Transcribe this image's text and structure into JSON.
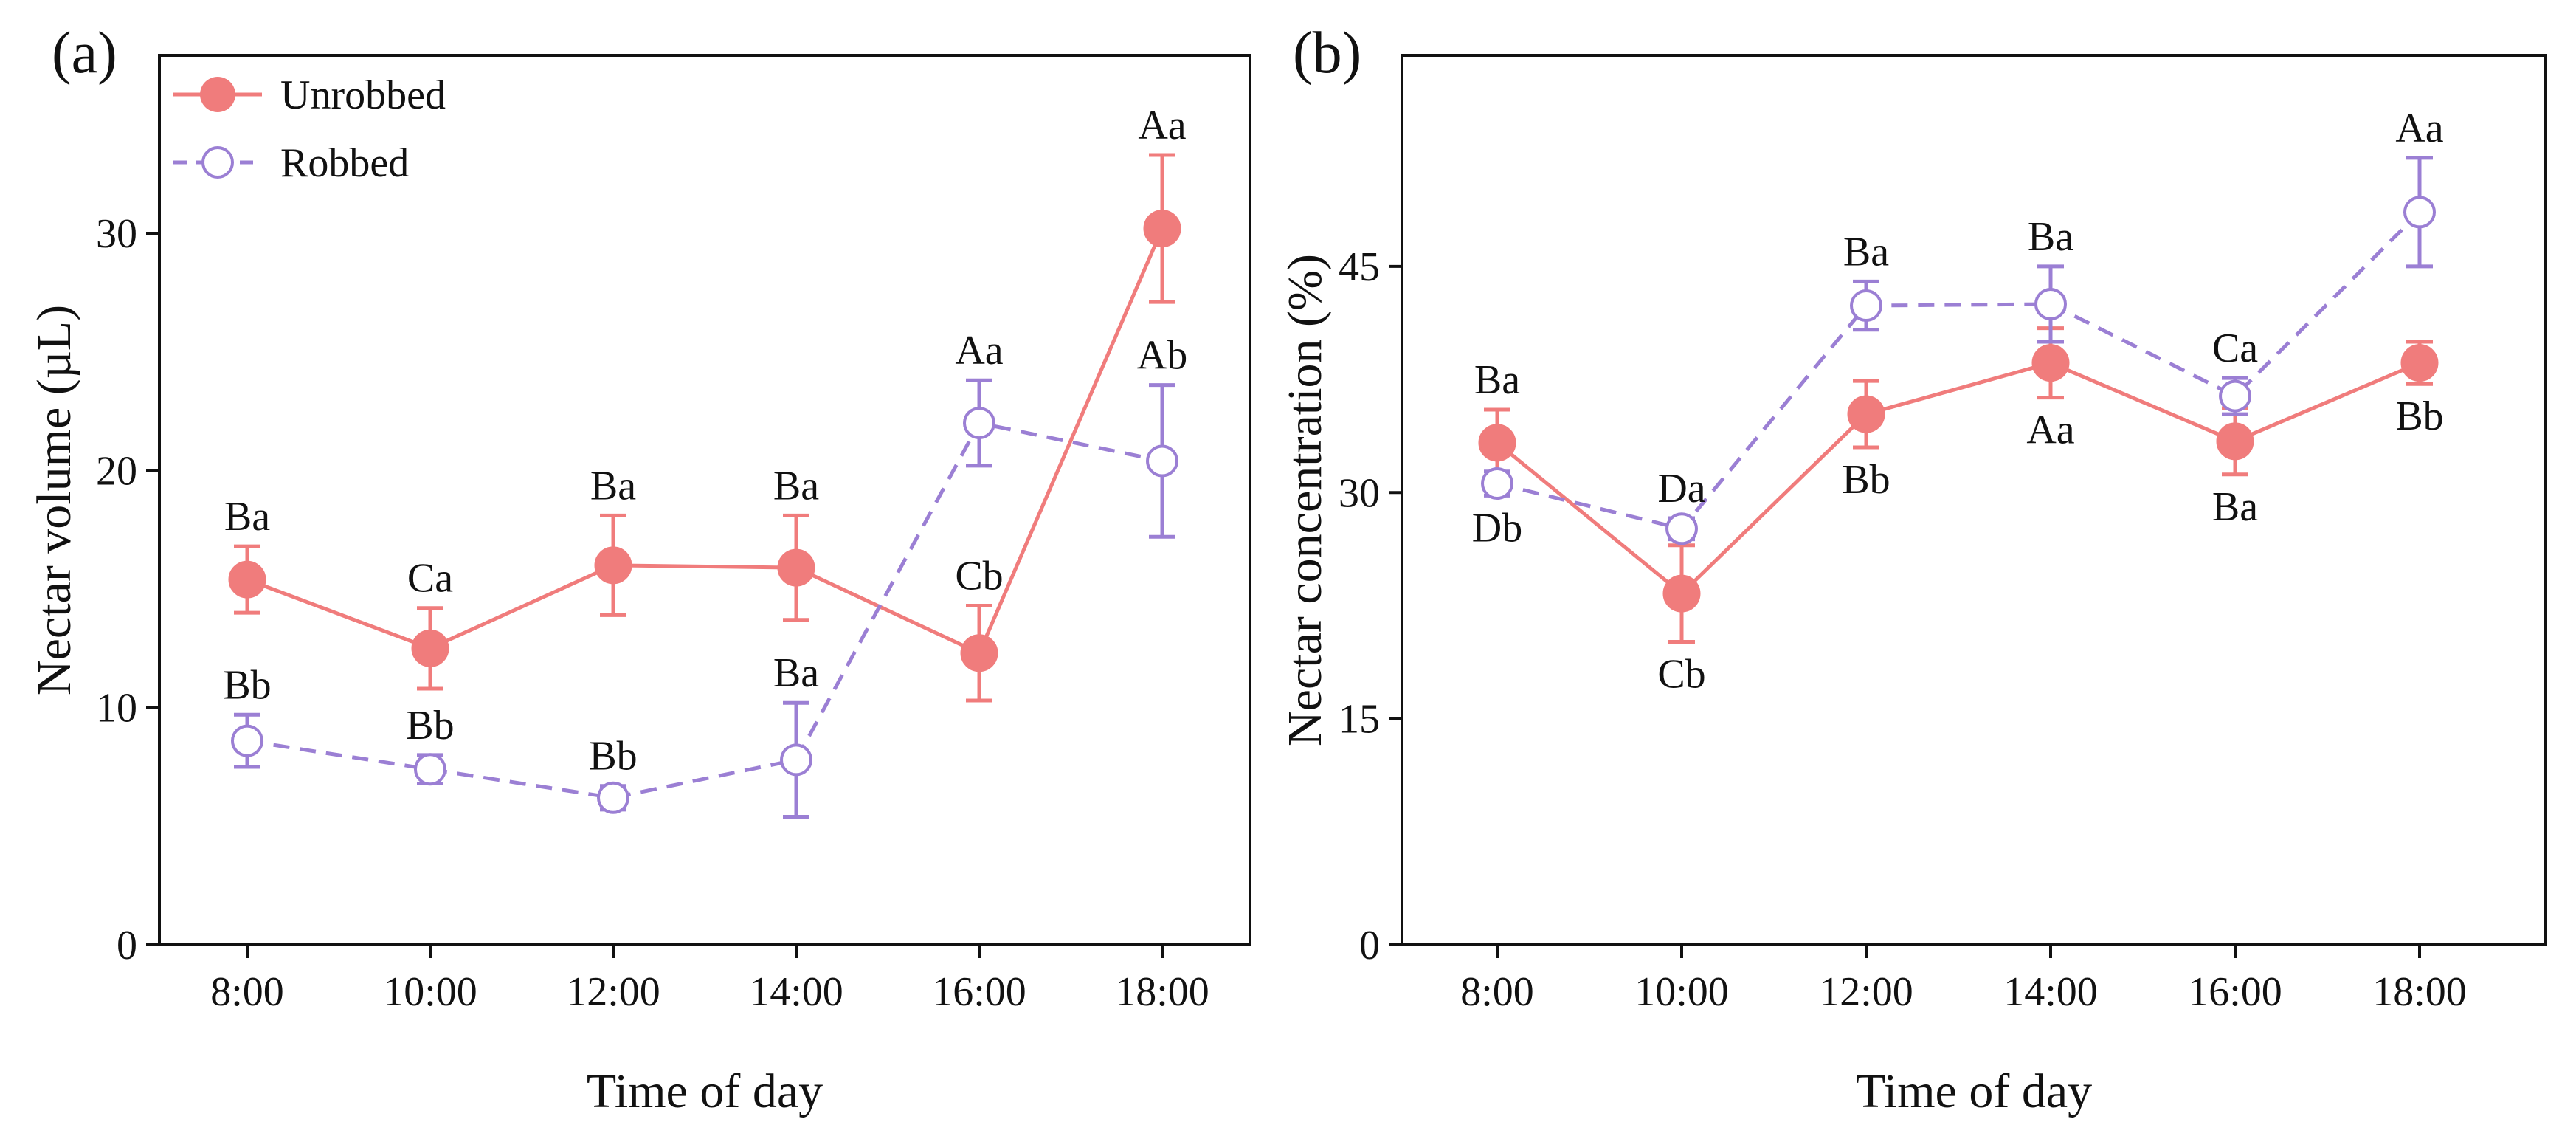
{
  "chart_data": [
    {
      "type": "line",
      "panel_label": "(a)",
      "xlabel": "Time of day",
      "ylabel": "Nectar volume (µL)",
      "categories": [
        "8:00",
        "10:00",
        "12:00",
        "14:00",
        "16:00",
        "18:00"
      ],
      "ylim": [
        0,
        37.5
      ],
      "yticks": [
        0,
        10,
        20,
        30
      ],
      "legend": {
        "position": "top-left"
      },
      "series": [
        {
          "name": "Unrobbed",
          "color": "#f07c7c",
          "marker": "filled-circle",
          "line_style": "solid",
          "values": [
            15.4,
            12.5,
            16.0,
            15.9,
            12.3,
            30.2
          ],
          "errors": [
            1.4,
            1.7,
            2.1,
            2.2,
            2.0,
            3.1
          ],
          "labels": [
            "Ba",
            "Ca",
            "Ba",
            "Ba",
            "Cb",
            "Aa"
          ],
          "label_side": [
            "above",
            "above",
            "above",
            "above",
            "above",
            "above"
          ]
        },
        {
          "name": "Robbed",
          "color": "#9b7fd4",
          "marker": "open-circle",
          "line_style": "dashed",
          "values": [
            8.6,
            7.4,
            6.2,
            7.8,
            22.0,
            20.4
          ],
          "errors": [
            1.1,
            0.6,
            0.5,
            2.4,
            1.8,
            3.2
          ],
          "labels": [
            "Bb",
            "Bb",
            "Bb",
            "Ba",
            "Aa",
            "Ab"
          ],
          "label_side": [
            "above",
            "above",
            "above",
            "above",
            "above",
            "above"
          ]
        }
      ]
    },
    {
      "type": "line",
      "panel_label": "(b)",
      "xlabel": "Time of day",
      "ylabel": "Nectar concentration (%)",
      "categories": [
        "8:00",
        "10:00",
        "12:00",
        "14:00",
        "16:00",
        "18:00"
      ],
      "ylim": [
        0,
        59
      ],
      "yticks": [
        0,
        15,
        30,
        45
      ],
      "series": [
        {
          "name": "Unrobbed",
          "color": "#f07c7c",
          "marker": "filled-circle",
          "line_style": "solid",
          "values": [
            33.3,
            23.3,
            35.2,
            38.6,
            33.4,
            38.6
          ],
          "errors": [
            2.2,
            3.2,
            2.2,
            2.3,
            2.2,
            1.4
          ],
          "labels": [
            "Ba",
            "Cb",
            "Bb",
            "Aa",
            "Ba",
            "Bb"
          ],
          "label_side": [
            "above",
            "below",
            "below",
            "below",
            "below",
            "below"
          ]
        },
        {
          "name": "Robbed",
          "color": "#9b7fd4",
          "marker": "open-circle",
          "line_style": "dashed",
          "values": [
            30.6,
            27.6,
            42.4,
            42.5,
            36.4,
            48.6
          ],
          "errors": [
            0.8,
            0.7,
            1.6,
            2.5,
            1.2,
            3.6
          ],
          "labels": [
            "Db",
            "Da",
            "Ba",
            "Ba",
            "Ca",
            "Aa"
          ],
          "label_side": [
            "below",
            "above",
            "above",
            "above",
            "above",
            "above"
          ]
        }
      ]
    }
  ]
}
